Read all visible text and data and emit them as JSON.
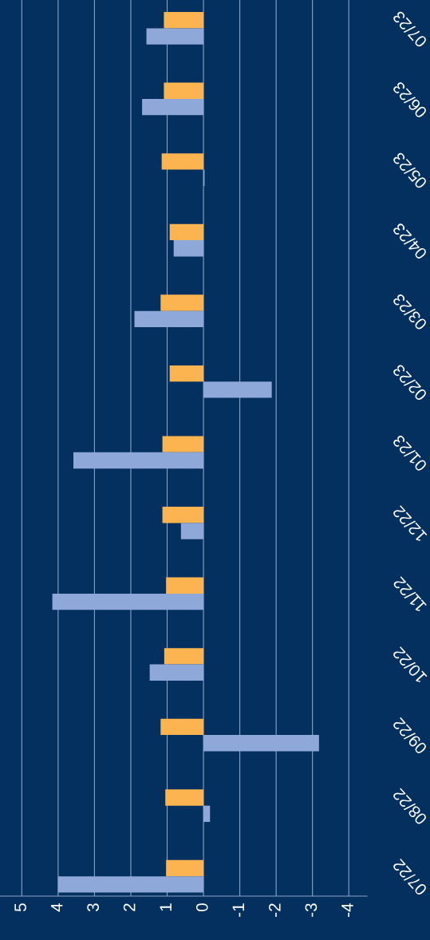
{
  "chart_data": {
    "type": "bar",
    "orientation": "horizontal",
    "categories": [
      "07/23",
      "06/23",
      "05/23",
      "04/23",
      "03/23",
      "02/23",
      "01/23",
      "12/22",
      "11/22",
      "10/22",
      "09/22",
      "08/22",
      "07/22"
    ],
    "series": [
      {
        "color": "#fbb450",
        "values": [
          1.09,
          1.09,
          1.15,
          0.93,
          1.18,
          0.93,
          1.13,
          1.13,
          1.03,
          1.08,
          1.18,
          1.05,
          1.03
        ]
      },
      {
        "color": "#8fa8da",
        "values": [
          1.57,
          1.69,
          -0.03,
          0.82,
          1.9,
          -1.88,
          3.58,
          0.62,
          4.16,
          1.48,
          -3.18,
          -0.18,
          4.0
        ]
      }
    ],
    "xlim": [
      5.6,
      -4.5
    ],
    "xticks": [
      5,
      4,
      3,
      2,
      1,
      0,
      -1,
      -2,
      -3,
      -4
    ],
    "grid": "x",
    "legend": false
  }
}
